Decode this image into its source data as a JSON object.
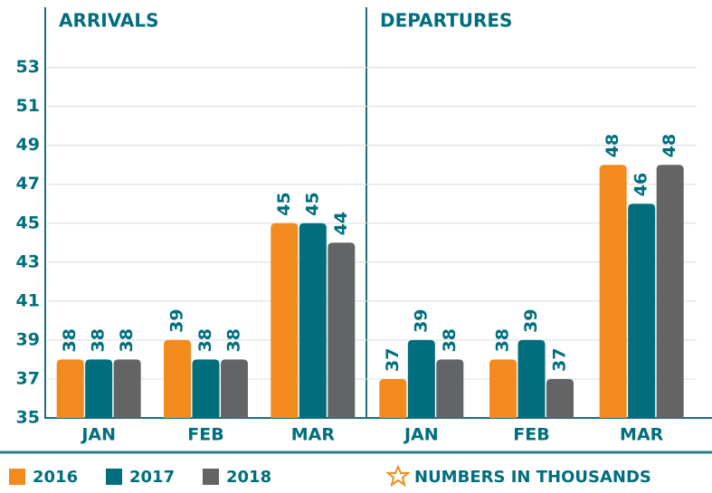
{
  "chart_data": {
    "type": "bar",
    "ylim": [
      35,
      56
    ],
    "yticks": [
      35,
      37,
      39,
      41,
      43,
      45,
      47,
      49,
      51,
      53
    ],
    "grid": true,
    "legend": [
      {
        "name": "2016",
        "color": "#f28a1e"
      },
      {
        "name": "2017",
        "color": "#006e7d"
      },
      {
        "name": "2018",
        "color": "#636466"
      }
    ],
    "panels": [
      {
        "title": "ARRIVALS",
        "categories": [
          "JAN",
          "FEB",
          "MAR"
        ],
        "series": [
          {
            "values": [
              38,
              39,
              45
            ]
          },
          {
            "values": [
              38,
              38,
              45
            ]
          },
          {
            "values": [
              38,
              38,
              44
            ]
          }
        ]
      },
      {
        "title": "DEPARTURES",
        "categories": [
          "JAN",
          "FEB",
          "MAR"
        ],
        "series": [
          {
            "values": [
              37,
              38,
              48
            ]
          },
          {
            "values": [
              39,
              39,
              46
            ]
          },
          {
            "values": [
              38,
              37,
              48
            ]
          }
        ]
      }
    ],
    "note": "NUMBERS IN THOUSANDS"
  }
}
